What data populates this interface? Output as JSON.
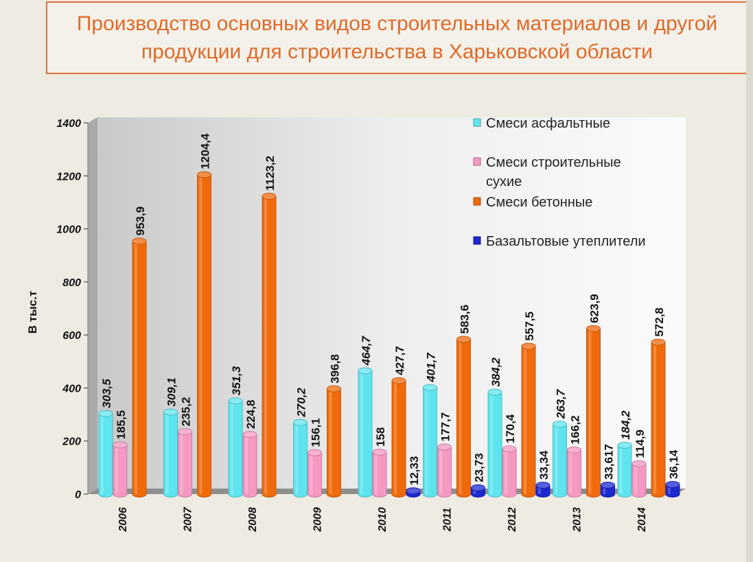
{
  "title": "Производство основных видов строительных материалов и другой продукции для строительства в Харьковской области",
  "chart_data": {
    "type": "bar",
    "ylabel": "В тыс.т",
    "ylim": [
      0,
      1400
    ],
    "yticks": [
      "0",
      "200",
      "400",
      "600",
      "800",
      "1000",
      "1200",
      "1400"
    ],
    "categories": [
      "2006",
      "2007",
      "2008",
      "2009",
      "2010",
      "2011",
      "2012",
      "2013",
      "2014"
    ],
    "legend_position": "top-right",
    "series": [
      {
        "name": "Смеси асфальтные",
        "color": "#5ee4ee",
        "values": [
          303.5,
          309.1,
          351.3,
          270.2,
          464.7,
          401.7,
          384.2,
          263.7,
          184.2
        ],
        "labels": [
          "303,5",
          "309,1",
          "351,3",
          "270,2",
          "464,7",
          "401,7",
          "384,2",
          "263,7",
          "184,2"
        ]
      },
      {
        "name": "Смеси строительные сухие",
        "name_lines": [
          "Смеси строительные",
          "сухие"
        ],
        "color": "#f598c2",
        "values": [
          185.5,
          235.2,
          224.8,
          156.1,
          158,
          177.7,
          170.4,
          166.2,
          114.9
        ],
        "labels": [
          "185,5",
          "235,2",
          "224,8",
          "156,1",
          "158",
          "177,7",
          "170,4",
          "166,2",
          "114,9"
        ]
      },
      {
        "name": "Смеси бетонные",
        "color": "#f06a0c",
        "values": [
          953.9,
          1204.4,
          1123.2,
          396.8,
          427.7,
          583.6,
          557.5,
          623.9,
          572.8
        ],
        "labels": [
          "953,9",
          "1204,4",
          "1123,2",
          "396,8",
          "427,7",
          "583,6",
          "557,5",
          "623,9",
          "572,8"
        ]
      },
      {
        "name": "Базальтовые утеплители",
        "color": "#1c28d0",
        "values": [
          null,
          null,
          null,
          null,
          12.33,
          23.73,
          33.34,
          33.617,
          36.14
        ],
        "labels": [
          "",
          "",
          "",
          "",
          "12,33",
          "23,73",
          "33,34",
          "33,617",
          "36,14"
        ]
      }
    ]
  }
}
